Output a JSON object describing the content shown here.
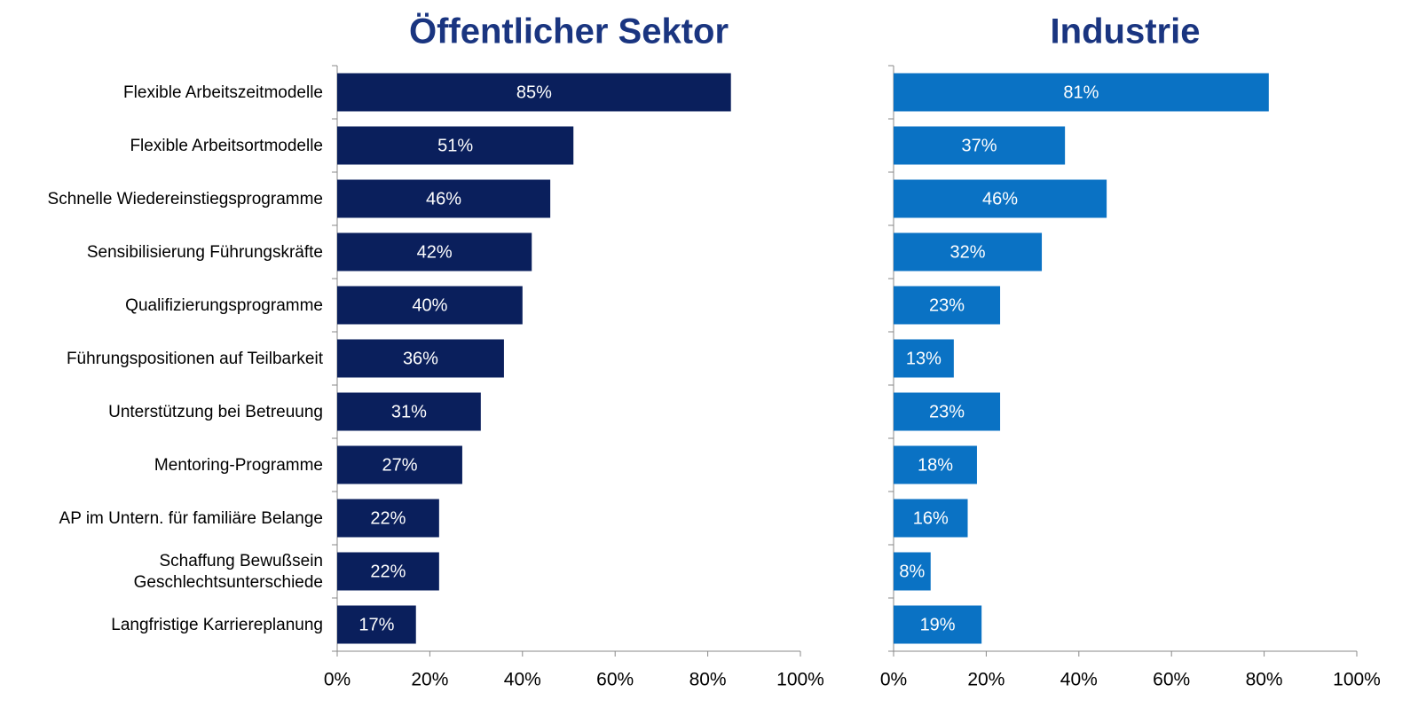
{
  "chart_data": [
    {
      "type": "bar",
      "orientation": "horizontal",
      "title": "Öffentlicher Sektor",
      "color": "#0a1f5c",
      "categories": [
        "Flexible Arbeitszeitmodelle",
        "Flexible Arbeitsortmodelle",
        "Schnelle Wiedereinstiegsprogramme",
        "Sensibilisierung Führungskräfte",
        "Qualifizierungsprogramme",
        "Führungspositionen auf Teilbarkeit",
        "Unterstützung bei Betreuung",
        "Mentoring-Programme",
        "AP im Untern. für familiäre Belange",
        "Schaffung Bewußsein\nGeschlechtsunterschiede",
        "Langfristige Karriereplanung"
      ],
      "values": [
        85,
        51,
        46,
        42,
        40,
        36,
        31,
        27,
        22,
        22,
        17
      ],
      "value_labels": [
        "85%",
        "51%",
        "46%",
        "42%",
        "40%",
        "36%",
        "31%",
        "27%",
        "22%",
        "22%",
        "17%"
      ],
      "xlim": [
        0,
        100
      ],
      "xticks": [
        {
          "value": 0,
          "label": "0%"
        },
        {
          "value": 20,
          "label": "20%"
        },
        {
          "value": 40,
          "label": "40%"
        },
        {
          "value": 60,
          "label": "60%"
        },
        {
          "value": 80,
          "label": "80%"
        },
        {
          "value": 100,
          "label": "100%"
        }
      ]
    },
    {
      "type": "bar",
      "orientation": "horizontal",
      "title": "Industrie",
      "color": "#0a72c4",
      "values": [
        81,
        37,
        46,
        32,
        23,
        13,
        23,
        18,
        16,
        8,
        19
      ],
      "value_labels": [
        "81%",
        "37%",
        "46%",
        "32%",
        "23%",
        "13%",
        "23%",
        "18%",
        "16%",
        "8%",
        "19%"
      ],
      "xlim": [
        0,
        100
      ],
      "xticks": [
        {
          "value": 0,
          "label": "0%"
        },
        {
          "value": 20,
          "label": "20%"
        },
        {
          "value": 40,
          "label": "40%"
        },
        {
          "value": 60,
          "label": "60%"
        },
        {
          "value": 80,
          "label": "80%"
        },
        {
          "value": 100,
          "label": "100%"
        }
      ]
    }
  ]
}
